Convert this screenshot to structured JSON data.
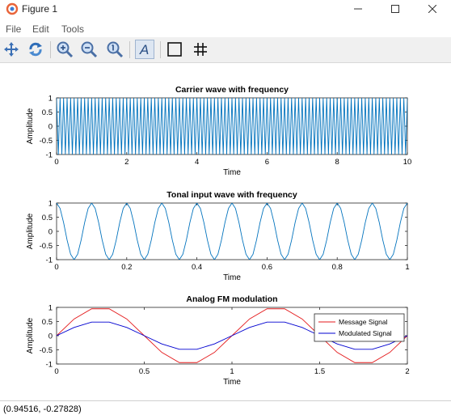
{
  "window": {
    "title": "Figure 1"
  },
  "menu": {
    "items": [
      "File",
      "Edit",
      "Tools"
    ]
  },
  "toolbar": {
    "buttons": [
      "pan-icon",
      "rotate-icon",
      "zoom-in-icon",
      "zoom-out-icon",
      "zoom-reset-icon",
      "text-icon",
      "axes-box-icon",
      "grid-icon"
    ]
  },
  "status": {
    "coords": "(0.94516, -0.27828)"
  },
  "colors": {
    "carrier": "#0072bd",
    "message": "#e41a1c",
    "modulated": "#0000d0",
    "toolbar_bg": "#f0f0f0"
  },
  "chart_data": [
    {
      "type": "line",
      "title": "Carrier wave with frequency",
      "xlabel": "Time",
      "ylabel": "Amplitude",
      "xlim": [
        0,
        10
      ],
      "ylim": [
        -1,
        1
      ],
      "xticks": [
        "0",
        "2",
        "4",
        "6",
        "8",
        "10"
      ],
      "yticks": [
        "1",
        "0.5",
        "0",
        "-0.5",
        "-1"
      ],
      "series": [
        {
          "function": "cos",
          "cycles_per_unit": 10,
          "sample_step": 0.05
        }
      ]
    },
    {
      "type": "line",
      "title": "Tonal input wave with frequency",
      "xlabel": "Time",
      "ylabel": "Amplitude",
      "xlim": [
        0,
        1
      ],
      "ylim": [
        -1,
        1
      ],
      "xticks": [
        "0",
        "0.2",
        "0.4",
        "0.6",
        "0.8",
        "1"
      ],
      "yticks": [
        "1",
        "0.5",
        "0",
        "-0.5",
        "-1"
      ],
      "series": [
        {
          "function": "cos",
          "cycles_per_unit": 10,
          "sample_step": 0.01
        }
      ]
    },
    {
      "type": "line",
      "title": "Analog FM modulation",
      "xlabel": "Time",
      "ylabel": "Amplitude",
      "xlim": [
        0,
        2
      ],
      "ylim": [
        -1,
        1
      ],
      "xticks": [
        "0",
        "0.5",
        "1",
        "1.5",
        "2"
      ],
      "yticks": [
        "1",
        "0.5",
        "0",
        "-0.5",
        "-1"
      ],
      "legend": "top-right",
      "series": [
        {
          "name": "Message Signal",
          "x": [
            0,
            0.1,
            0.2,
            0.3,
            0.4,
            0.5,
            0.6,
            0.7,
            0.8,
            0.9,
            1.0,
            1.1,
            1.2,
            1.3,
            1.4,
            1.5,
            1.6,
            1.7,
            1.8,
            1.9,
            2.0
          ],
          "y": [
            0,
            0.59,
            0.95,
            0.95,
            0.59,
            0,
            -0.59,
            -0.95,
            -0.95,
            -0.59,
            0,
            0.59,
            0.95,
            0.95,
            0.59,
            0,
            -0.59,
            -0.95,
            -0.95,
            -0.59,
            0
          ]
        },
        {
          "name": "Modulated Signal",
          "x": [
            0,
            0.1,
            0.2,
            0.3,
            0.4,
            0.5,
            0.6,
            0.7,
            0.8,
            0.9,
            1.0,
            1.1,
            1.2,
            1.3,
            1.4,
            1.5,
            1.6,
            1.7,
            1.8,
            1.9,
            2.0
          ],
          "y": [
            0,
            0.29,
            0.48,
            0.48,
            0.29,
            0,
            -0.29,
            -0.48,
            -0.48,
            -0.29,
            0,
            0.29,
            0.48,
            0.48,
            0.29,
            0,
            -0.29,
            -0.48,
            -0.48,
            -0.29,
            0
          ]
        }
      ]
    }
  ]
}
